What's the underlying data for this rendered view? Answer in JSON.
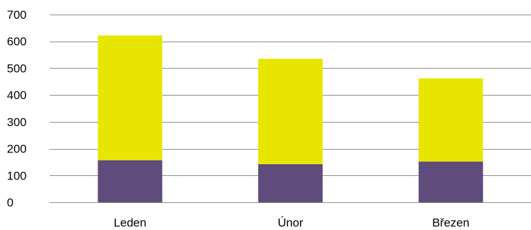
{
  "chart_data": {
    "type": "bar",
    "stacked": true,
    "categories": [
      "Leden",
      "Únor",
      "Březen"
    ],
    "series": [
      {
        "values": [
          157,
          142,
          152
        ],
        "color": "#5f4b7c"
      },
      {
        "values": [
          465,
          393,
          310
        ],
        "color": "#e8e600"
      }
    ],
    "ylim": [
      0,
      700
    ],
    "yticks": [
      "0",
      "100",
      "200",
      "300",
      "400",
      "500",
      "600",
      "700"
    ],
    "grid": true,
    "legend": "none"
  }
}
